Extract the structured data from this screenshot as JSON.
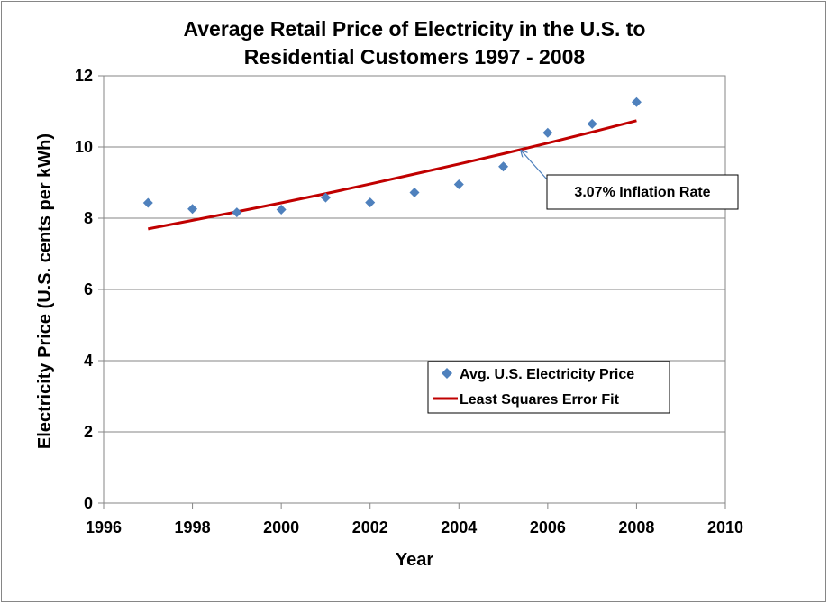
{
  "chart_data": {
    "type": "scatter",
    "title_lines": [
      "Average Retail Price of Electricity in the U.S. to",
      "Residential Customers 1997 - 2008"
    ],
    "xlabel": "Year",
    "ylabel": "Electricity Price (U.S. cents per kWh)",
    "xlim": [
      1996,
      2010
    ],
    "ylim": [
      0,
      12
    ],
    "x_ticks": [
      1996,
      1998,
      2000,
      2002,
      2004,
      2006,
      2008,
      2010
    ],
    "y_ticks": [
      0,
      2,
      4,
      6,
      8,
      10,
      12
    ],
    "grid": "horizontal",
    "legend_position": "lower-right",
    "series": [
      {
        "name": "Avg. U.S. Electricity Price",
        "kind": "markers",
        "marker": "diamond",
        "color": "#4F81BD",
        "x": [
          1997,
          1998,
          1999,
          2000,
          2001,
          2002,
          2003,
          2004,
          2005,
          2006,
          2007,
          2008
        ],
        "y": [
          8.43,
          8.26,
          8.16,
          8.24,
          8.58,
          8.44,
          8.72,
          8.95,
          9.45,
          10.4,
          10.65,
          11.26
        ]
      },
      {
        "name": "Least Squares Error Fit",
        "kind": "line",
        "color": "#C00000",
        "x": [
          1997,
          1998,
          1999,
          2000,
          2001,
          2002,
          2003,
          2004,
          2005,
          2006,
          2007,
          2008
        ],
        "y": [
          7.7,
          7.94,
          8.18,
          8.43,
          8.69,
          8.96,
          9.24,
          9.52,
          9.81,
          10.11,
          10.42,
          10.74
        ]
      }
    ],
    "annotations": [
      {
        "text": "3.07% Inflation Rate",
        "arrow_to": {
          "x": 2005.4,
          "y": 9.9
        }
      }
    ]
  }
}
